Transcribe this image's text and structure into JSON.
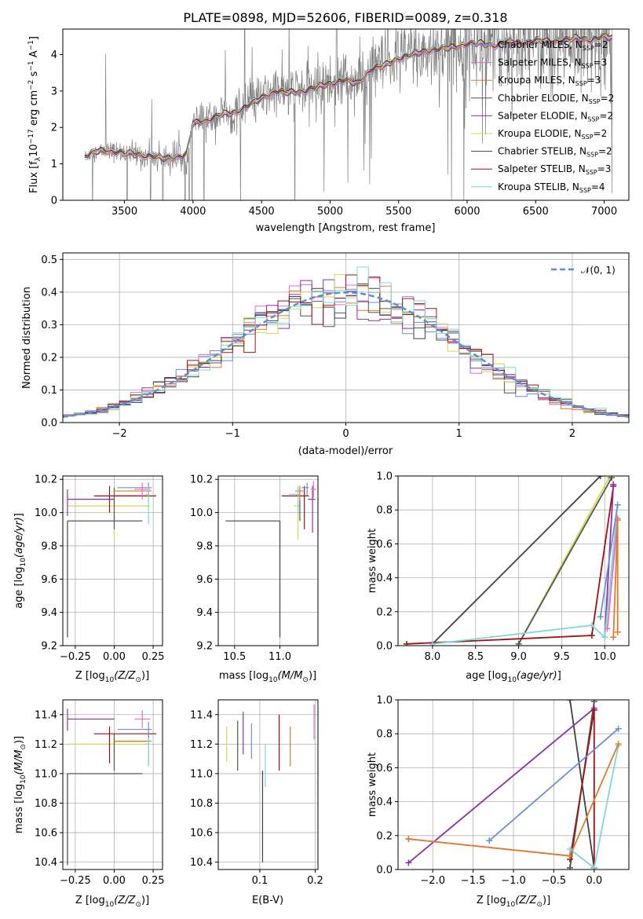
{
  "figure_title": "PLATE=0898, MJD=52606, FIBERID=0089, z=0.318",
  "colors": {
    "Chabrier MILES": "#6a8fd8",
    "Salpeter MILES": "#e86cc0",
    "Kroupa MILES": "#e07b2a",
    "Chabrier ELODIE": "#555555",
    "Salpeter ELODIE": "#8b2fb0",
    "Kroupa ELODIE": "#d6d94a",
    "Chabrier STELIB": "#404040",
    "Salpeter STELIB": "#a01010",
    "Kroupa STELIB": "#7dd8dc",
    "data": "#808080",
    "normal": "#5b8ed6"
  },
  "chart_data": [
    {
      "id": "spectrum",
      "type": "line",
      "title": "PLATE=0898, MJD=52606, FIBERID=0089, z=0.318",
      "xlabel": "wavelength [Angstrom, rest frame]",
      "ylabel": "Flux [f",
      "xlim": [
        3050,
        7180
      ],
      "ylim": [
        0,
        4.7
      ],
      "xticks": [
        3500,
        4000,
        4500,
        5000,
        5500,
        6000,
        6500,
        7000
      ],
      "yticks": [
        0,
        1,
        2,
        3,
        4
      ],
      "grid": false,
      "legend_position": "top-right",
      "data_wavelength_range": [
        3210,
        7060
      ],
      "model_continuum": {
        "x": [
          3210,
          3300,
          3400,
          3500,
          3600,
          3700,
          3800,
          3900,
          3950,
          4000,
          4100,
          4200,
          4300,
          4400,
          4500,
          4600,
          4700,
          4800,
          4900,
          5000,
          5100,
          5200,
          5300,
          5400,
          5500,
          5600,
          5700,
          5800,
          5900,
          6000,
          6100,
          6200,
          6300,
          6400,
          6500,
          6600,
          6700,
          6800,
          6900,
          7000,
          7060
        ],
        "y": [
          1.2,
          1.35,
          1.35,
          1.3,
          1.25,
          1.2,
          1.15,
          1.2,
          1.25,
          2.1,
          2.2,
          2.35,
          2.4,
          2.6,
          2.8,
          3.0,
          2.95,
          3.0,
          3.1,
          3.2,
          3.3,
          3.2,
          3.6,
          3.7,
          3.9,
          4.0,
          4.1,
          4.15,
          4.2,
          4.3,
          4.3,
          4.25,
          4.35,
          4.3,
          4.4,
          4.35,
          4.4,
          4.45,
          4.4,
          4.5,
          4.45
        ]
      },
      "legend": [
        {
          "label": "Chabrier MILES, N",
          "sub": "SSP",
          "suffix": "=2"
        },
        {
          "label": "Salpeter MILES, N",
          "sub": "SSP",
          "suffix": "=3"
        },
        {
          "label": "Kroupa MILES, N",
          "sub": "SSP",
          "suffix": "=3"
        },
        {
          "label": "Chabrier ELODIE, N",
          "sub": "SSP",
          "suffix": "=2"
        },
        {
          "label": "Salpeter ELODIE, N",
          "sub": "SSP",
          "suffix": "=2"
        },
        {
          "label": "Kroupa ELODIE, N",
          "sub": "SSP",
          "suffix": "=2"
        },
        {
          "label": "Chabrier STELIB, N",
          "sub": "SSP",
          "suffix": "=2"
        },
        {
          "label": "Salpeter STELIB, N",
          "sub": "SSP",
          "suffix": "=3"
        },
        {
          "label": "Kroupa STELIB, N",
          "sub": "SSP",
          "suffix": "=4"
        }
      ]
    },
    {
      "id": "residuals",
      "type": "histogram",
      "xlabel": "(data-model)/error",
      "ylabel": "Normed distribution",
      "xlim": [
        -2.5,
        2.5
      ],
      "ylim": [
        0,
        0.52
      ],
      "xticks": [
        -2,
        -1,
        0,
        1,
        2
      ],
      "yticks": [
        0.0,
        0.1,
        0.2,
        0.3,
        0.4,
        0.5
      ],
      "grid": true,
      "bin_width": 0.1,
      "legend": "𝒩(0, 1)",
      "legend_position": "top-right"
    },
    {
      "id": "age_vs_Z",
      "type": "scatter",
      "xlabel": "Z [log",
      "ylabel": "age  [log",
      "xlim": [
        -0.33,
        0.31
      ],
      "ylim": [
        9.2,
        10.22
      ],
      "xticks": [
        -0.25,
        0.0,
        0.25
      ],
      "yticks": [
        9.2,
        9.4,
        9.6,
        9.8,
        10.0,
        10.2
      ],
      "grid": true,
      "points": [
        {
          "m": "Chabrier STELIB",
          "x": -0.3,
          "y": 9.95,
          "xerr": [
            0.0,
            0.48
          ],
          "yerr": [
            0.7,
            0.0
          ]
        },
        {
          "m": "Kroupa ELODIE",
          "x": 0.0,
          "y": 10.04,
          "xerr": [
            0.3,
            0.23
          ],
          "yerr": [
            0.2,
            0.1
          ]
        },
        {
          "m": "Salpeter ELODIE",
          "x": -0.3,
          "y": 10.08,
          "xerr": [
            0.0,
            0.3
          ],
          "yerr": [
            0.1,
            0.06
          ]
        },
        {
          "m": "Chabrier ELODIE",
          "x": 0.0,
          "y": 10.1,
          "xerr": [
            0.0,
            0.2
          ],
          "yerr": [
            0.2,
            0.05
          ]
        },
        {
          "m": "Salpeter STELIB",
          "x": -0.03,
          "y": 10.1,
          "xerr": [
            0.1,
            0.3
          ],
          "yerr": [
            0.1,
            0.06
          ]
        },
        {
          "m": "Kroupa MILES",
          "x": 0.22,
          "y": 10.13,
          "xerr": [
            0.22,
            0.02
          ],
          "yerr": [
            0.06,
            0.03
          ]
        },
        {
          "m": "Chabrier MILES",
          "x": 0.22,
          "y": 10.15,
          "xerr": [
            0.2,
            0.02
          ],
          "yerr": [
            0.05,
            0.03
          ]
        },
        {
          "m": "Salpeter MILES",
          "x": 0.18,
          "y": 10.14,
          "xerr": [
            0.05,
            0.05
          ],
          "yerr": [
            0.06,
            0.04
          ]
        },
        {
          "m": "Kroupa STELIB",
          "x": 0.22,
          "y": 10.11,
          "xerr": [
            0.02,
            0.0
          ],
          "yerr": [
            0.18,
            0.05
          ]
        }
      ]
    },
    {
      "id": "age_vs_mass",
      "type": "scatter",
      "xlabel": "mass [log",
      "ylabel": "",
      "xlim": [
        10.32,
        11.42
      ],
      "ylim": [
        9.2,
        10.22
      ],
      "xticks": [
        10.5,
        11.0
      ],
      "yticks": [
        9.2,
        9.4,
        9.6,
        9.8,
        10.0,
        10.2
      ],
      "grid": true,
      "points": [
        {
          "m": "Chabrier STELIB",
          "x": 11.0,
          "y": 9.95,
          "xerr": [
            0.6,
            0.0
          ],
          "yerr": [
            0.7,
            0.0
          ]
        },
        {
          "m": "Kroupa ELODIE",
          "x": 11.2,
          "y": 10.04,
          "xerr": [
            0.05,
            0.02
          ],
          "yerr": [
            0.2,
            0.06
          ]
        },
        {
          "m": "Salpeter ELODIE",
          "x": 11.36,
          "y": 10.08,
          "xerr": [
            0.05,
            0.03
          ],
          "yerr": [
            0.2,
            0.08
          ]
        },
        {
          "m": "Chabrier ELODIE",
          "x": 11.22,
          "y": 10.1,
          "xerr": [
            0.06,
            0.02
          ],
          "yerr": [
            0.15,
            0.05
          ]
        },
        {
          "m": "Salpeter STELIB",
          "x": 11.27,
          "y": 10.1,
          "xerr": [
            0.25,
            0.05
          ],
          "yerr": [
            0.2,
            0.06
          ]
        },
        {
          "m": "Kroupa MILES",
          "x": 11.22,
          "y": 10.13,
          "xerr": [
            0.05,
            0.04
          ],
          "yerr": [
            0.06,
            0.03
          ]
        },
        {
          "m": "Chabrier MILES",
          "x": 11.3,
          "y": 10.15,
          "xerr": [
            0.06,
            0.02
          ],
          "yerr": [
            0.05,
            0.03
          ]
        },
        {
          "m": "Salpeter MILES",
          "x": 11.37,
          "y": 10.14,
          "xerr": [
            0.03,
            0.03
          ],
          "yerr": [
            0.05,
            0.05
          ]
        },
        {
          "m": "Kroupa STELIB",
          "x": 11.2,
          "y": 10.11,
          "xerr": [
            0.1,
            0.03
          ],
          "yerr": [
            0.12,
            0.05
          ]
        }
      ]
    },
    {
      "id": "weight_vs_age",
      "type": "line",
      "xlabel": "age  [log",
      "ylabel": "mass weight",
      "xlim": [
        7.6,
        10.28
      ],
      "ylim": [
        0,
        1.0
      ],
      "xticks": [
        8.0,
        8.5,
        9.0,
        9.5,
        10.0
      ],
      "yticks": [
        0.0,
        0.2,
        0.4,
        0.6,
        0.8,
        1.0
      ],
      "grid": true,
      "series": [
        {
          "m": "Chabrier STELIB",
          "x": [
            8.0,
            9.95
          ],
          "y": [
            0.01,
            1.0
          ]
        },
        {
          "m": "Kroupa ELODIE",
          "x": [
            9.0,
            10.05
          ],
          "y": [
            0.01,
            0.99
          ]
        },
        {
          "m": "Chabrier ELODIE",
          "x": [
            9.0,
            10.08
          ],
          "y": [
            0.01,
            0.99
          ]
        },
        {
          "m": "Salpeter STELIB",
          "x": [
            7.7,
            9.85,
            10.1
          ],
          "y": [
            0.01,
            0.06,
            0.94
          ]
        },
        {
          "m": "Salpeter ELODIE",
          "x": [
            10.0,
            10.1
          ],
          "y": [
            0.05,
            0.95
          ]
        },
        {
          "m": "Kroupa STELIB",
          "x": [
            8.0,
            9.85,
            10.0,
            10.15
          ],
          "y": [
            0.01,
            0.12,
            0.05,
            0.83
          ]
        },
        {
          "m": "Chabrier MILES",
          "x": [
            9.95,
            10.15
          ],
          "y": [
            0.17,
            0.83
          ]
        },
        {
          "m": "Salpeter MILES",
          "x": [
            10.03,
            10.15
          ],
          "y": [
            0.1,
            0.75
          ]
        },
        {
          "m": "Kroupa MILES",
          "x": [
            10.1,
            10.15,
            10.15
          ],
          "y": [
            0.05,
            0.74,
            0.08
          ]
        }
      ]
    },
    {
      "id": "mass_vs_Z",
      "type": "scatter",
      "xlabel": "Z [log",
      "ylabel": "mass [log",
      "xlim": [
        -0.33,
        0.31
      ],
      "ylim": [
        10.35,
        11.5
      ],
      "xticks": [
        -0.25,
        0.0,
        0.25
      ],
      "yticks": [
        10.4,
        10.6,
        10.8,
        11.0,
        11.2,
        11.4
      ],
      "grid": true,
      "points": [
        {
          "m": "Chabrier STELIB",
          "x": -0.3,
          "y": 11.0,
          "xerr": [
            0.0,
            0.48
          ],
          "yerr": [
            0.62,
            0.0
          ]
        },
        {
          "m": "Kroupa ELODIE",
          "x": 0.0,
          "y": 11.2,
          "xerr": [
            0.3,
            0.23
          ],
          "yerr": [
            0.1,
            0.05
          ]
        },
        {
          "m": "Salpeter ELODIE",
          "x": -0.3,
          "y": 11.37,
          "xerr": [
            0.0,
            0.3
          ],
          "yerr": [
            0.08,
            0.07
          ]
        },
        {
          "m": "Chabrier ELODIE",
          "x": 0.0,
          "y": 11.22,
          "xerr": [
            0.0,
            0.2
          ],
          "yerr": [
            0.2,
            0.05
          ]
        },
        {
          "m": "Salpeter STELIB",
          "x": -0.03,
          "y": 11.27,
          "xerr": [
            0.1,
            0.3
          ],
          "yerr": [
            0.2,
            0.05
          ]
        },
        {
          "m": "Kroupa MILES",
          "x": 0.22,
          "y": 11.22,
          "xerr": [
            0.22,
            0.02
          ],
          "yerr": [
            0.17,
            0.06
          ]
        },
        {
          "m": "Chabrier MILES",
          "x": 0.22,
          "y": 11.3,
          "xerr": [
            0.2,
            0.02
          ],
          "yerr": [
            0.06,
            0.05
          ]
        },
        {
          "m": "Salpeter MILES",
          "x": 0.18,
          "y": 11.37,
          "xerr": [
            0.05,
            0.05
          ],
          "yerr": [
            0.06,
            0.06
          ]
        },
        {
          "m": "Kroupa STELIB",
          "x": 0.22,
          "y": 11.2,
          "xerr": [
            0.02,
            0.0
          ],
          "yerr": [
            0.15,
            0.04
          ]
        }
      ]
    },
    {
      "id": "mass_vs_EBV",
      "type": "scatter",
      "xlabel": "E(B-V)",
      "ylabel": "",
      "xlim": [
        0.025,
        0.205
      ],
      "ylim": [
        10.35,
        11.5
      ],
      "xticks": [
        0.1,
        0.2
      ],
      "yticks": [
        10.4,
        10.6,
        10.8,
        11.0,
        11.2,
        11.4
      ],
      "grid": true,
      "points": [
        {
          "m": "Kroupa ELODIE",
          "x": 0.04,
          "y": 11.2,
          "xerr": [
            0,
            0
          ],
          "yerr": [
            0.12,
            0.12
          ]
        },
        {
          "m": "Chabrier ELODIE",
          "x": 0.06,
          "y": 11.2,
          "xerr": [
            0,
            0
          ],
          "yerr": [
            0.18,
            0.16
          ]
        },
        {
          "m": "Salpeter ELODIE",
          "x": 0.07,
          "y": 11.28,
          "xerr": [
            0,
            0
          ],
          "yerr": [
            0.15,
            0.14
          ]
        },
        {
          "m": "Chabrier MILES",
          "x": 0.085,
          "y": 11.22,
          "xerr": [
            0,
            0
          ],
          "yerr": [
            0.12,
            0.12
          ]
        },
        {
          "m": "Kroupa STELIB",
          "x": 0.11,
          "y": 11.06,
          "xerr": [
            0,
            0
          ],
          "yerr": [
            0.15,
            0.14
          ]
        },
        {
          "m": "Chabrier STELIB",
          "x": 0.105,
          "y": 10.8,
          "xerr": [
            0,
            0
          ],
          "yerr": [
            0.4,
            0.22
          ]
        },
        {
          "m": "Salpeter STELIB",
          "x": 0.135,
          "y": 11.2,
          "xerr": [
            0,
            0
          ],
          "yerr": [
            0.18,
            0.2
          ]
        },
        {
          "m": "Kroupa MILES",
          "x": 0.155,
          "y": 11.2,
          "xerr": [
            0,
            0
          ],
          "yerr": [
            0.15,
            0.12
          ]
        },
        {
          "m": "Salpeter MILES",
          "x": 0.198,
          "y": 11.35,
          "xerr": [
            0,
            0
          ],
          "yerr": [
            0.12,
            0.12
          ]
        }
      ]
    },
    {
      "id": "weight_vs_Z",
      "type": "line",
      "xlabel": "Z [log",
      "ylabel": "mass weight",
      "xlim": [
        -2.43,
        0.43
      ],
      "ylim": [
        0,
        1.0
      ],
      "xticks": [
        -2.0,
        -1.5,
        -1.0,
        -0.5,
        0.0
      ],
      "yticks": [
        0.0,
        0.2,
        0.4,
        0.6,
        0.8,
        1.0
      ],
      "grid": true,
      "series": [
        {
          "m": "Chabrier STELIB",
          "x": [
            -0.3,
            0.0
          ],
          "y": [
            1.0,
            0.01
          ]
        },
        {
          "m": "Kroupa ELODIE",
          "x": [
            -0.3,
            0.0
          ],
          "y": [
            0.01,
            0.99
          ]
        },
        {
          "m": "Chabrier ELODIE",
          "x": [
            -0.3,
            0.0
          ],
          "y": [
            0.01,
            0.99
          ]
        },
        {
          "m": "Salpeter ELODIE",
          "x": [
            -2.3,
            0.0
          ],
          "y": [
            0.04,
            0.95
          ]
        },
        {
          "m": "Salpeter STELIB",
          "x": [
            -0.3,
            0.0,
            0.0
          ],
          "y": [
            0.06,
            0.94,
            0.01
          ]
        },
        {
          "m": "Kroupa STELIB",
          "x": [
            -0.3,
            0.0,
            0.3
          ],
          "y": [
            0.12,
            0.01,
            0.73
          ]
        },
        {
          "m": "Chabrier MILES",
          "x": [
            -1.3,
            0.3
          ],
          "y": [
            0.17,
            0.83
          ]
        },
        {
          "m": "Salpeter MILES",
          "x": [
            -2.3,
            -0.3
          ],
          "y": [
            0.18,
            0.08
          ]
        },
        {
          "m": "Kroupa MILES",
          "x": [
            -2.3,
            -0.3,
            0.3
          ],
          "y": [
            0.18,
            0.08,
            0.74
          ]
        }
      ]
    }
  ]
}
